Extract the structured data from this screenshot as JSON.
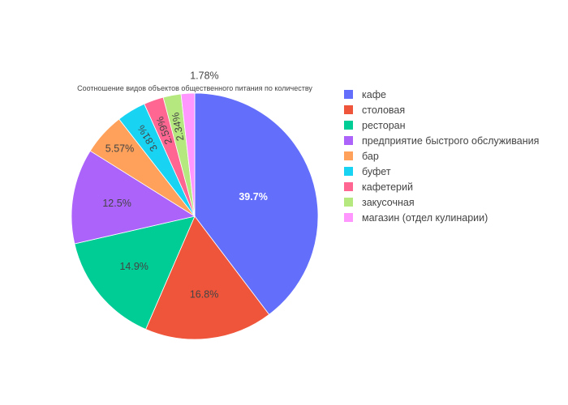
{
  "chart_data": {
    "type": "pie",
    "title": "Соотношение видов объектов общественного питания по количеству",
    "categories": [
      "кафе",
      "столовая",
      "ресторан",
      "предприятие быстрого обслуживания",
      "бар",
      "буфет",
      "кафетерий",
      "закусочная",
      "магазин (отдел кулинарии)"
    ],
    "values": [
      39.7,
      16.8,
      14.9,
      12.5,
      5.57,
      3.81,
      2.59,
      2.34,
      1.78
    ],
    "labels": [
      "39.7%",
      "16.8%",
      "14.9%",
      "12.5%",
      "5.57%",
      "3.81%",
      "2.59%",
      "2.34%",
      "1.78%"
    ],
    "colors": [
      "#636efa",
      "#ef553b",
      "#00cc96",
      "#ab63fa",
      "#ffa15a",
      "#19d3f3",
      "#ff6692",
      "#b6e880",
      "#ff97ff"
    ],
    "label_colors": [
      "#ffffff",
      "#444444",
      "#444444",
      "#444444",
      "#444444",
      "#444444",
      "#444444",
      "#444444",
      "#444444"
    ],
    "sort": "descending",
    "direction": "clockwise",
    "start_angle": "top",
    "legend": {
      "position": "right"
    }
  }
}
